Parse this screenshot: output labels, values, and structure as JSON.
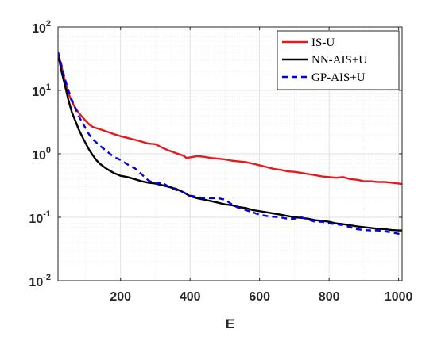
{
  "chart_data": {
    "type": "line",
    "title": "",
    "xlabel": "E",
    "ylabel": "",
    "x_scale": "linear",
    "y_scale": "log",
    "xlim": [
      20,
      1010
    ],
    "ylim": [
      0.01,
      100
    ],
    "grid": true,
    "minor_grid": true,
    "legend_position": "top-right",
    "x_ticks": [
      200,
      400,
      600,
      800,
      1000
    ],
    "x_tick_labels": [
      "200",
      "400",
      "600",
      "800",
      "1000"
    ],
    "y_ticks": [
      0.01,
      0.1,
      1,
      10,
      100
    ],
    "y_tick_labels": [
      {
        "base": "10",
        "exp": "-2"
      },
      {
        "base": "10",
        "exp": "-1"
      },
      {
        "base": "10",
        "exp": "0"
      },
      {
        "base": "10",
        "exp": "1"
      },
      {
        "base": "10",
        "exp": "2"
      }
    ],
    "series": [
      {
        "name": "IS-U",
        "color": "#e8191e",
        "dash": "solid",
        "points": [
          [
            20,
            40
          ],
          [
            30,
            24
          ],
          [
            40,
            14
          ],
          [
            50,
            9
          ],
          [
            60,
            6.6
          ],
          [
            70,
            5.3
          ],
          [
            80,
            4.4
          ],
          [
            90,
            3.8
          ],
          [
            100,
            3.3
          ],
          [
            110,
            2.9
          ],
          [
            120,
            2.65
          ],
          [
            140,
            2.45
          ],
          [
            160,
            2.25
          ],
          [
            180,
            2.05
          ],
          [
            200,
            1.9
          ],
          [
            220,
            1.78
          ],
          [
            250,
            1.62
          ],
          [
            280,
            1.45
          ],
          [
            300,
            1.42
          ],
          [
            320,
            1.25
          ],
          [
            340,
            1.12
          ],
          [
            360,
            1.02
          ],
          [
            380,
            0.94
          ],
          [
            390,
            0.86
          ],
          [
            400,
            0.88
          ],
          [
            420,
            0.92
          ],
          [
            440,
            0.9
          ],
          [
            460,
            0.86
          ],
          [
            480,
            0.84
          ],
          [
            500,
            0.82
          ],
          [
            520,
            0.78
          ],
          [
            540,
            0.76
          ],
          [
            560,
            0.74
          ],
          [
            580,
            0.7
          ],
          [
            600,
            0.66
          ],
          [
            620,
            0.62
          ],
          [
            640,
            0.58
          ],
          [
            660,
            0.56
          ],
          [
            680,
            0.53
          ],
          [
            700,
            0.52
          ],
          [
            720,
            0.5
          ],
          [
            740,
            0.48
          ],
          [
            760,
            0.46
          ],
          [
            780,
            0.44
          ],
          [
            800,
            0.43
          ],
          [
            820,
            0.42
          ],
          [
            840,
            0.43
          ],
          [
            860,
            0.4
          ],
          [
            880,
            0.39
          ],
          [
            900,
            0.37
          ],
          [
            920,
            0.37
          ],
          [
            940,
            0.36
          ],
          [
            960,
            0.36
          ],
          [
            980,
            0.35
          ],
          [
            1000,
            0.34
          ],
          [
            1010,
            0.335
          ]
        ]
      },
      {
        "name": "NN-AIS+U",
        "color": "#000000",
        "dash": "solid",
        "points": [
          [
            20,
            38
          ],
          [
            30,
            20
          ],
          [
            40,
            12
          ],
          [
            50,
            7
          ],
          [
            60,
            4.5
          ],
          [
            70,
            3.3
          ],
          [
            80,
            2.4
          ],
          [
            90,
            1.85
          ],
          [
            100,
            1.45
          ],
          [
            110,
            1.15
          ],
          [
            120,
            0.95
          ],
          [
            130,
            0.8
          ],
          [
            140,
            0.7
          ],
          [
            160,
            0.58
          ],
          [
            180,
            0.5
          ],
          [
            200,
            0.45
          ],
          [
            220,
            0.43
          ],
          [
            240,
            0.4
          ],
          [
            260,
            0.37
          ],
          [
            280,
            0.35
          ],
          [
            300,
            0.34
          ],
          [
            320,
            0.32
          ],
          [
            340,
            0.3
          ],
          [
            360,
            0.28
          ],
          [
            380,
            0.25
          ],
          [
            400,
            0.215
          ],
          [
            420,
            0.2
          ],
          [
            440,
            0.19
          ],
          [
            460,
            0.18
          ],
          [
            480,
            0.17
          ],
          [
            500,
            0.16
          ],
          [
            520,
            0.155
          ],
          [
            540,
            0.145
          ],
          [
            560,
            0.14
          ],
          [
            580,
            0.13
          ],
          [
            600,
            0.125
          ],
          [
            620,
            0.12
          ],
          [
            640,
            0.115
          ],
          [
            660,
            0.11
          ],
          [
            680,
            0.105
          ],
          [
            700,
            0.1
          ],
          [
            720,
            0.098
          ],
          [
            740,
            0.095
          ],
          [
            760,
            0.09
          ],
          [
            780,
            0.088
          ],
          [
            800,
            0.085
          ],
          [
            820,
            0.08
          ],
          [
            840,
            0.078
          ],
          [
            860,
            0.075
          ],
          [
            880,
            0.072
          ],
          [
            900,
            0.07
          ],
          [
            920,
            0.068
          ],
          [
            940,
            0.066
          ],
          [
            960,
            0.065
          ],
          [
            980,
            0.063
          ],
          [
            1000,
            0.062
          ],
          [
            1010,
            0.062
          ]
        ]
      },
      {
        "name": "GP-AIS+U",
        "color": "#0000ee",
        "dash": "dashed",
        "points": [
          [
            20,
            40
          ],
          [
            30,
            25
          ],
          [
            40,
            15
          ],
          [
            50,
            10
          ],
          [
            60,
            7
          ],
          [
            70,
            5.2
          ],
          [
            80,
            3.9
          ],
          [
            90,
            3.1
          ],
          [
            100,
            2.5
          ],
          [
            110,
            2.0
          ],
          [
            120,
            1.7
          ],
          [
            140,
            1.35
          ],
          [
            160,
            1.1
          ],
          [
            180,
            0.9
          ],
          [
            200,
            0.8
          ],
          [
            220,
            0.68
          ],
          [
            240,
            0.6
          ],
          [
            260,
            0.48
          ],
          [
            280,
            0.38
          ],
          [
            300,
            0.34
          ],
          [
            320,
            0.35
          ],
          [
            340,
            0.3
          ],
          [
            360,
            0.27
          ],
          [
            380,
            0.25
          ],
          [
            400,
            0.22
          ],
          [
            420,
            0.21
          ],
          [
            440,
            0.2
          ],
          [
            460,
            0.2
          ],
          [
            480,
            0.2
          ],
          [
            500,
            0.19
          ],
          [
            520,
            0.16
          ],
          [
            540,
            0.14
          ],
          [
            560,
            0.13
          ],
          [
            580,
            0.12
          ],
          [
            600,
            0.11
          ],
          [
            620,
            0.105
          ],
          [
            640,
            0.102
          ],
          [
            660,
            0.1
          ],
          [
            680,
            0.095
          ],
          [
            700,
            0.095
          ],
          [
            720,
            0.1
          ],
          [
            740,
            0.092
          ],
          [
            760,
            0.085
          ],
          [
            780,
            0.085
          ],
          [
            800,
            0.08
          ],
          [
            820,
            0.078
          ],
          [
            840,
            0.075
          ],
          [
            860,
            0.07
          ],
          [
            880,
            0.065
          ],
          [
            900,
            0.063
          ],
          [
            920,
            0.062
          ],
          [
            940,
            0.062
          ],
          [
            960,
            0.06
          ],
          [
            980,
            0.058
          ],
          [
            1000,
            0.055
          ],
          [
            1010,
            0.052
          ]
        ]
      }
    ]
  }
}
